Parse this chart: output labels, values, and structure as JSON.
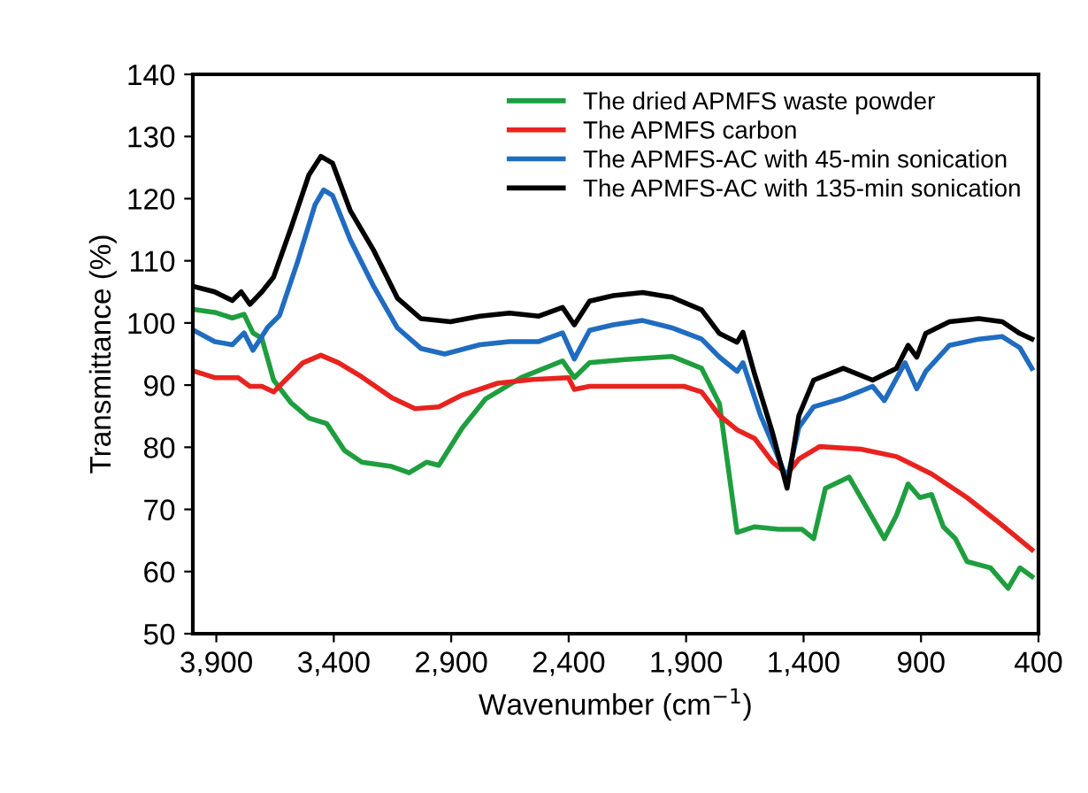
{
  "chart_data": {
    "type": "line",
    "xlabel": "Wavenumber (cm$^{−1}$)",
    "ylabel": "Transmittance (%)",
    "xlim": [
      4000,
      400
    ],
    "ylim": [
      50,
      140
    ],
    "xticks": [
      {
        "value": 3900,
        "label": "3,900"
      },
      {
        "value": 3400,
        "label": "3,400"
      },
      {
        "value": 2900,
        "label": "2,900"
      },
      {
        "value": 2400,
        "label": "2,400"
      },
      {
        "value": 1900,
        "label": "1,900"
      },
      {
        "value": 1400,
        "label": "1,400"
      },
      {
        "value": 900,
        "label": "900"
      },
      {
        "value": 400,
        "label": "400"
      }
    ],
    "yticks": [
      50,
      60,
      70,
      80,
      90,
      100,
      110,
      120,
      130,
      140
    ],
    "grid": false,
    "legend": "top right",
    "marker": "none",
    "line_style": "solid",
    "series": [
      {
        "name": "The dried APMFS waste powder",
        "color": "#1e9e3e",
        "x": [
          4000,
          3907,
          3832,
          3782,
          3744,
          3706,
          3656,
          3581,
          3506,
          3430,
          3355,
          3280,
          3154,
          3079,
          3004,
          2953,
          2853,
          2753,
          2602,
          2426,
          2376,
          2311,
          2160,
          1959,
          1834,
          1758,
          1683,
          1608,
          1507,
          1407,
          1357,
          1307,
          1206,
          1156,
          1056,
          1005,
          955,
          905,
          855,
          805,
          754,
          704,
          604,
          529,
          479,
          428
        ],
        "values": [
          102.2,
          101.7,
          100.8,
          101.4,
          98.4,
          97.5,
          90.8,
          87.1,
          84.7,
          83.8,
          79.5,
          77.6,
          76.9,
          75.9,
          77.6,
          77.1,
          83.1,
          87.8,
          91.2,
          93.9,
          91.2,
          93.6,
          94.1,
          94.6,
          92.7,
          87,
          66.3,
          67.2,
          66.8,
          66.8,
          65.3,
          73.4,
          75.2,
          71.9,
          65.3,
          69,
          74.1,
          71.9,
          72.4,
          67.2,
          65.3,
          61.6,
          60.6,
          57.3,
          60.6,
          59.2
        ]
      },
      {
        "name": "The APMFS carbon",
        "color": "#e8231f",
        "x": [
          4000,
          3907,
          3807,
          3757,
          3706,
          3656,
          3606,
          3531,
          3455,
          3380,
          3280,
          3154,
          3054,
          2953,
          2853,
          2702,
          2552,
          2401,
          2376,
          2311,
          2160,
          1909,
          1834,
          1758,
          1683,
          1608,
          1532,
          1470,
          1420,
          1332,
          1156,
          1005,
          855,
          704,
          579,
          428
        ],
        "values": [
          92.3,
          91.2,
          91.2,
          89.8,
          89.8,
          88.9,
          90.8,
          93.6,
          94.8,
          93.6,
          91.3,
          88,
          86.2,
          86.5,
          88.4,
          90.3,
          90.9,
          91.2,
          89.3,
          89.8,
          89.8,
          89.8,
          88.9,
          85.1,
          82.8,
          81.4,
          77.6,
          75.7,
          78.1,
          80.1,
          79.7,
          78.5,
          75.7,
          71.9,
          68.2,
          63.5
        ]
      },
      {
        "name": "The APMFS-AC with 45-min sonication",
        "color": "#1f6cc0",
        "x": [
          4000,
          3907,
          3832,
          3782,
          3744,
          3681,
          3631,
          3556,
          3480,
          3443,
          3405,
          3330,
          3229,
          3129,
          3029,
          2928,
          2778,
          2652,
          2527,
          2426,
          2376,
          2311,
          2210,
          2085,
          1959,
          1834,
          1758,
          1683,
          1658,
          1583,
          1520,
          1470,
          1420,
          1357,
          1231,
          1106,
          1056,
          968,
          918,
          880,
          779,
          654,
          554,
          479,
          428
        ],
        "values": [
          98.9,
          97,
          96.5,
          98.4,
          95.6,
          99.3,
          101.2,
          109.6,
          119,
          121.4,
          120.5,
          113.4,
          105.8,
          99.2,
          95.9,
          95,
          96.5,
          97,
          97,
          98.4,
          94.2,
          98.8,
          99.7,
          100.4,
          99.2,
          97.4,
          94.5,
          92.2,
          93.6,
          85.1,
          79.5,
          74.8,
          83.2,
          86.5,
          87.9,
          89.8,
          87.5,
          93.6,
          89.4,
          92.2,
          96.4,
          97.4,
          97.8,
          96,
          92.7
        ]
      },
      {
        "name": "The APMFS-AC with 135-min sonication",
        "color": "#000000",
        "x": [
          4000,
          3907,
          3832,
          3794,
          3757,
          3706,
          3656,
          3581,
          3506,
          3455,
          3405,
          3330,
          3229,
          3129,
          3029,
          2903,
          2778,
          2652,
          2527,
          2426,
          2376,
          2311,
          2210,
          2085,
          1959,
          1834,
          1758,
          1683,
          1658,
          1608,
          1532,
          1470,
          1420,
          1357,
          1231,
          1106,
          1005,
          955,
          918,
          880,
          779,
          654,
          554,
          479,
          428
        ],
        "values": [
          105.9,
          105,
          103.6,
          105,
          103,
          105,
          107.4,
          115.4,
          123.8,
          126.8,
          125.7,
          118.1,
          111.6,
          104,
          100.7,
          100.2,
          101.1,
          101.6,
          101.1,
          102.5,
          99.7,
          103.5,
          104.4,
          104.9,
          104.1,
          102.1,
          98.3,
          96.9,
          98.5,
          91.7,
          82.3,
          73.4,
          85.1,
          90.8,
          92.7,
          90.8,
          92.7,
          96.4,
          94.5,
          98.3,
          100.2,
          100.7,
          100.2,
          98.3,
          97.4
        ]
      }
    ]
  }
}
